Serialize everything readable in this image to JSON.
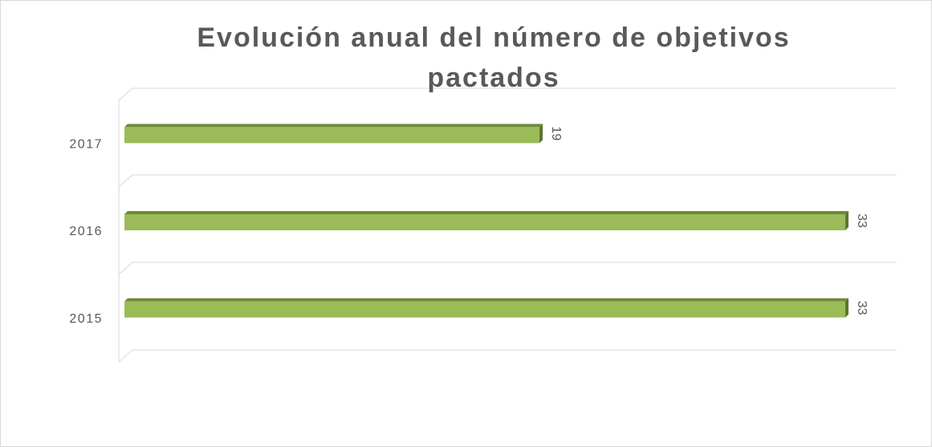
{
  "chart_data": {
    "type": "bar3d-horizontal",
    "title": "Evolución anual del número de objetivos pactados",
    "categories": [
      "2017",
      "2016",
      "2015"
    ],
    "values": [
      19,
      33,
      33
    ],
    "color": "#9bbb59",
    "xlim": [
      0,
      33
    ]
  }
}
